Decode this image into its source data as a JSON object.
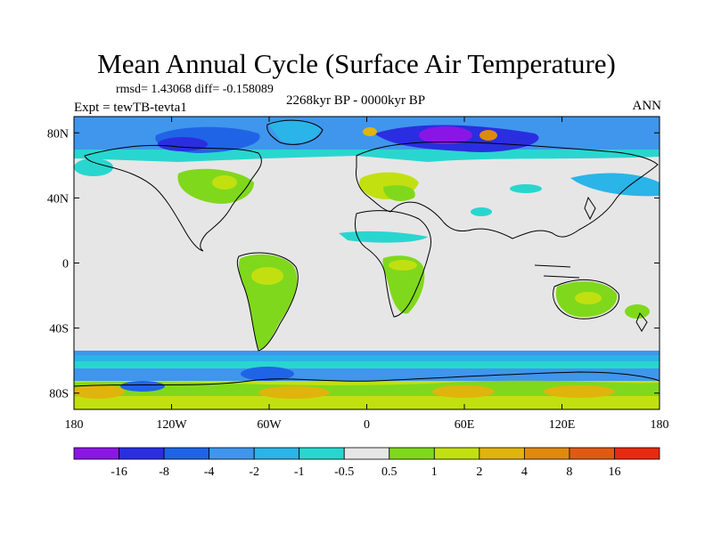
{
  "title": "Mean Annual Cycle (Surface Air Temperature)",
  "stats": "rmsd= 1.43068 diff= -0.158089",
  "experiment": "Expt = tewTB-tevta1",
  "period": "2268kyr BP - 0000kyr BP",
  "season": "ANN",
  "map": {
    "lat_ticks": [
      "80N",
      "40N",
      "0",
      "40S",
      "80S"
    ],
    "lat_values": [
      80,
      40,
      0,
      -40,
      -80
    ],
    "lon_ticks": [
      "180",
      "120W",
      "60W",
      "0",
      "60E",
      "120E",
      "180"
    ],
    "lon_values": [
      -180,
      -120,
      -60,
      0,
      60,
      120,
      180
    ],
    "lat_range": [
      -90,
      90
    ],
    "lon_range": [
      -180,
      180
    ]
  },
  "colorbar": {
    "labels": [
      "-16",
      "-8",
      "-4",
      "-2",
      "-1",
      "-0.5",
      "0.5",
      "1",
      "2",
      "4",
      "8",
      "16"
    ],
    "colors": [
      "#8a16e6",
      "#2a2ee0",
      "#1f64e6",
      "#3f96ec",
      "#2ab4e8",
      "#29d6cf",
      "#e6e6e6",
      "#80d81c",
      "#c2e010",
      "#e0b40c",
      "#e08a0c",
      "#e05a12",
      "#e62a10"
    ]
  },
  "colors": {
    "zero": "#e6e6e6",
    "coast": "#000000"
  }
}
